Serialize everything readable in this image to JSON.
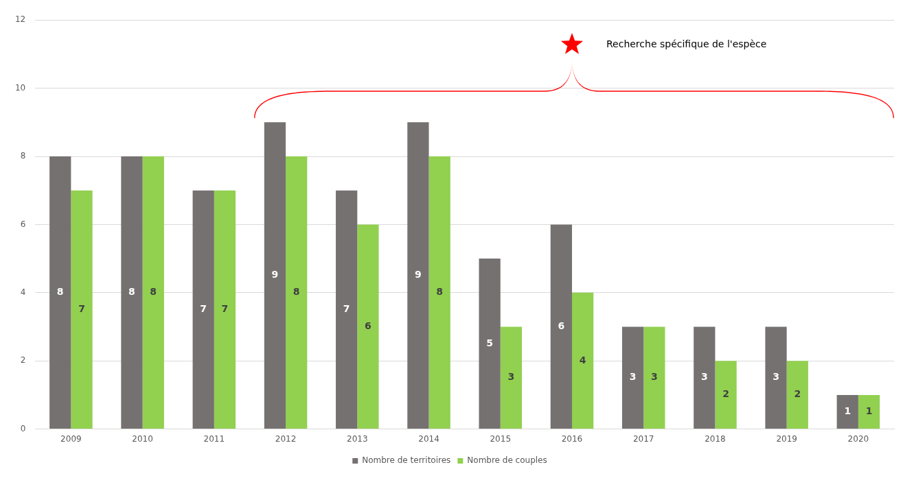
{
  "chart_data": {
    "type": "bar",
    "categories": [
      "2009",
      "2010",
      "2011",
      "2012",
      "2013",
      "2014",
      "2015",
      "2016",
      "2017",
      "2018",
      "2019",
      "2020"
    ],
    "series": [
      {
        "name": "Nombre de territoires",
        "color": "#767171",
        "values": [
          8,
          8,
          7,
          9,
          7,
          9,
          5,
          6,
          3,
          3,
          3,
          1
        ]
      },
      {
        "name": "Nombre de couples",
        "color": "#92d050",
        "values": [
          7,
          8,
          7,
          8,
          6,
          8,
          3,
          4,
          3,
          2,
          2,
          1
        ]
      }
    ],
    "ylim": [
      0,
      12
    ],
    "yticks": [
      0,
      2,
      4,
      6,
      8,
      10,
      12
    ],
    "grid": "y",
    "legend": "bottom",
    "data_labels": true,
    "annotations": [
      "Recherche spécifique de l'espèce"
    ]
  }
}
